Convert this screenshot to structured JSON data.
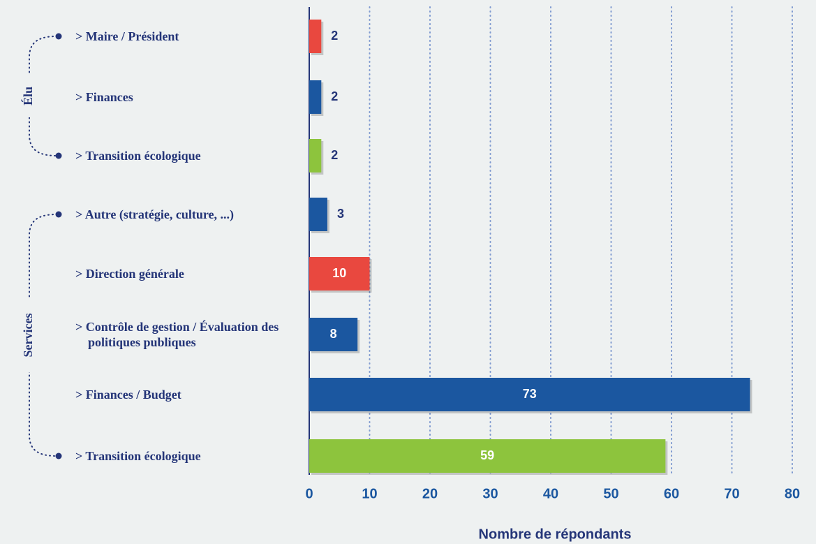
{
  "chart_data": {
    "type": "bar",
    "orientation": "horizontal",
    "categories": [
      "> Maire / Président",
      "> Finances",
      "> Transition écologique",
      "> Autre (stratégie, culture, ...)",
      "> Direction générale",
      "> Contrôle de gestion / Évaluation des politiques publiques",
      "> Finances / Budget",
      "> Transition écologique"
    ],
    "values": [
      2,
      2,
      2,
      3,
      10,
      8,
      73,
      59
    ],
    "colors": [
      "#e9483f",
      "#1b57a0",
      "#8dc43d",
      "#1b57a0",
      "#e9483f",
      "#1b57a0",
      "#1b57a0",
      "#8dc43d"
    ],
    "groups": [
      {
        "name": "Élu",
        "from": 0,
        "to": 2
      },
      {
        "name": "Services",
        "from": 3,
        "to": 7
      }
    ],
    "xlabel": "Nombre de répondants",
    "xlim": [
      0,
      80
    ],
    "xticks": [
      0,
      10,
      20,
      30,
      40,
      50,
      60,
      70,
      80
    ],
    "grid": true
  }
}
